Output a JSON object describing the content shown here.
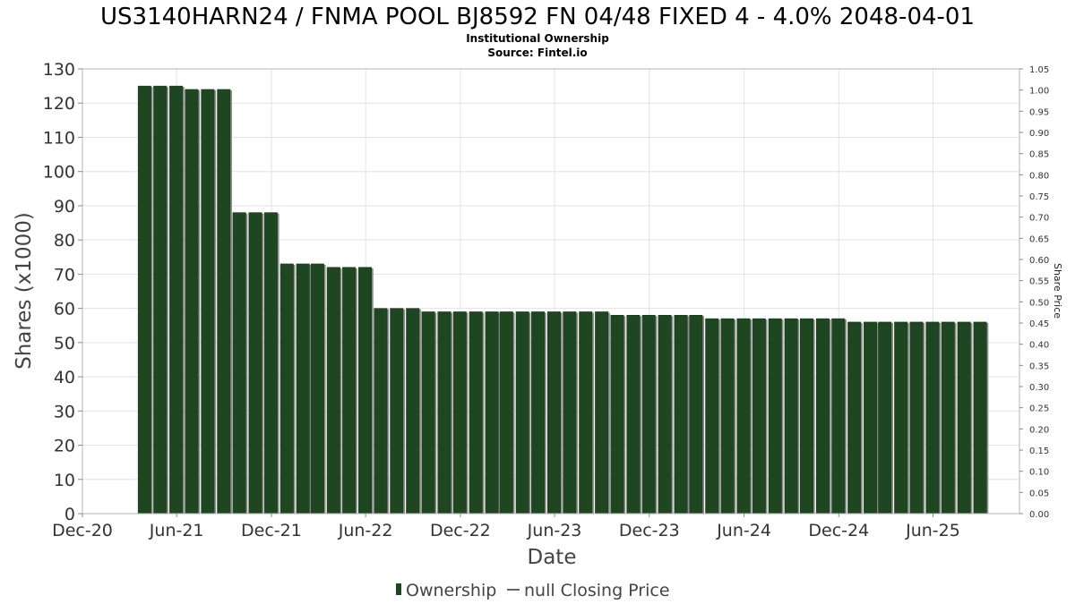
{
  "chart_data": {
    "type": "bar",
    "title": "US3140HARN24 / FNMA POOL BJ8592 FN 04/48 FIXED 4 - 4.0% 2048-04-01",
    "subtitles": [
      "Institutional Ownership",
      "Source: Fintel.io"
    ],
    "xlabel": "Date",
    "ylabel": "Shares (x1000)",
    "y2label": "Share Price",
    "ylim": [
      0,
      130
    ],
    "y2lim": [
      0,
      1.05
    ],
    "xlim": [
      "2020-12-01",
      "2025-11-15"
    ],
    "yticks": [
      "0",
      "10",
      "20",
      "30",
      "40",
      "50",
      "60",
      "70",
      "80",
      "90",
      "100",
      "110",
      "120",
      "130"
    ],
    "y2ticks": [
      "0.00",
      "0.05",
      "0.10",
      "0.15",
      "0.20",
      "0.25",
      "0.30",
      "0.35",
      "0.40",
      "0.45",
      "0.50",
      "0.55",
      "0.60",
      "0.65",
      "0.70",
      "0.75",
      "0.80",
      "0.85",
      "0.90",
      "0.95",
      "1.00",
      "1.05"
    ],
    "xticks": [
      {
        "date": "2020-12-01",
        "label": "Dec-20"
      },
      {
        "date": "2021-06-01",
        "label": "Jun-21"
      },
      {
        "date": "2021-12-01",
        "label": "Dec-21"
      },
      {
        "date": "2022-06-01",
        "label": "Jun-22"
      },
      {
        "date": "2022-12-01",
        "label": "Dec-22"
      },
      {
        "date": "2023-06-01",
        "label": "Jun-23"
      },
      {
        "date": "2023-12-01",
        "label": "Dec-23"
      },
      {
        "date": "2024-06-01",
        "label": "Jun-24"
      },
      {
        "date": "2024-12-01",
        "label": "Dec-24"
      },
      {
        "date": "2025-06-01",
        "label": "Jun-25"
      }
    ],
    "grid": true,
    "legend_position": "bottom",
    "series": [
      {
        "name": "Ownership",
        "color": "#1e4620",
        "x": [
          "2021-03-31",
          "2021-04-30",
          "2021-05-31",
          "2021-06-30",
          "2021-07-31",
          "2021-08-31",
          "2021-09-30",
          "2021-10-31",
          "2021-11-30",
          "2021-12-31",
          "2022-01-31",
          "2022-02-28",
          "2022-03-31",
          "2022-04-30",
          "2022-05-31",
          "2022-06-30",
          "2022-07-31",
          "2022-08-31",
          "2022-09-30",
          "2022-10-31",
          "2022-11-30",
          "2022-12-31",
          "2023-01-31",
          "2023-02-28",
          "2023-03-31",
          "2023-04-30",
          "2023-05-31",
          "2023-06-30",
          "2023-07-31",
          "2023-08-31",
          "2023-09-30",
          "2023-10-31",
          "2023-11-30",
          "2023-12-31",
          "2024-01-31",
          "2024-02-29",
          "2024-03-31",
          "2024-04-30",
          "2024-05-31",
          "2024-06-30",
          "2024-07-31",
          "2024-08-31",
          "2024-09-30",
          "2024-10-31",
          "2024-11-30",
          "2024-12-31",
          "2025-01-31",
          "2025-02-28",
          "2025-03-31",
          "2025-04-30",
          "2025-05-31",
          "2025-06-30",
          "2025-07-31",
          "2025-08-31"
        ],
        "values": [
          125,
          125,
          125,
          124,
          124,
          124,
          88,
          88,
          88,
          73,
          73,
          73,
          72,
          72,
          72,
          60,
          60,
          60,
          59,
          59,
          59,
          59,
          59,
          59,
          59,
          59,
          59,
          59,
          59,
          59,
          58,
          58,
          58,
          58,
          58,
          58,
          57,
          57,
          57,
          57,
          57,
          57,
          57,
          57,
          57,
          56,
          56,
          56,
          56,
          56,
          56,
          56,
          56,
          56
        ]
      },
      {
        "name": "null Closing Price",
        "color": "#666666",
        "x": [],
        "values": []
      }
    ]
  }
}
